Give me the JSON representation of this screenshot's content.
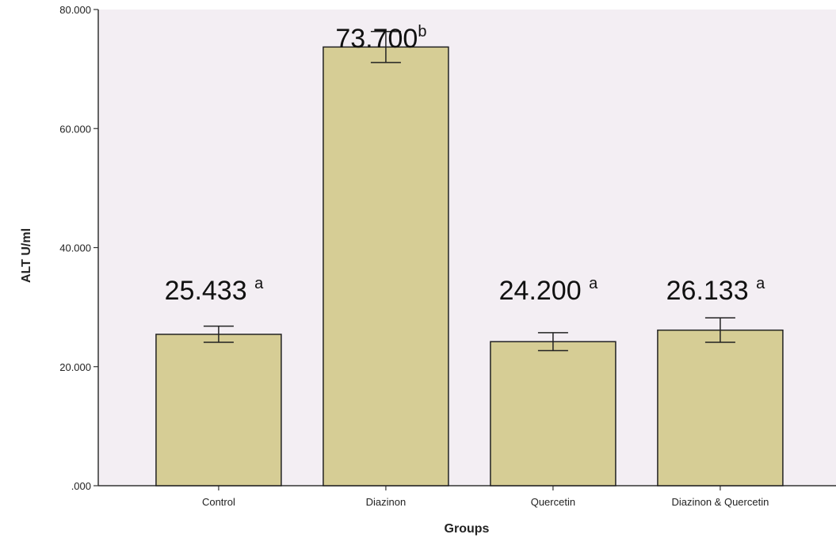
{
  "chart_data": {
    "type": "bar",
    "categories": [
      "Control",
      "Diazinon",
      "Quercetin",
      "Diazinon & Quercetin"
    ],
    "values": [
      25.433,
      73.7,
      24.2,
      26.133
    ],
    "error_bars": [
      {
        "low": 24.1,
        "high": 26.8
      },
      {
        "low": 71.1,
        "high": 76.3
      },
      {
        "low": 22.7,
        "high": 25.7
      },
      {
        "low": 24.1,
        "high": 28.2
      }
    ],
    "data_labels": [
      {
        "value": "25.433",
        "superscript": "a"
      },
      {
        "value": "73.700",
        "superscript": "b"
      },
      {
        "value": "24.200",
        "superscript": "a"
      },
      {
        "value": "26.133",
        "superscript": "a"
      }
    ],
    "ylim": [
      0,
      80
    ],
    "yticks": [
      ".000",
      "20.000",
      "40.000",
      "60.000",
      "80.000"
    ],
    "ytick_values": [
      0,
      20,
      40,
      60,
      80
    ],
    "xlabel": "Groups",
    "ylabel": "ALT U/ml",
    "grid": false,
    "legend": "none",
    "colors": {
      "plot_background": "#f3eef3",
      "bar_fill": "#d6cd95",
      "bar_stroke": "#222222",
      "axis": "#333333"
    }
  }
}
